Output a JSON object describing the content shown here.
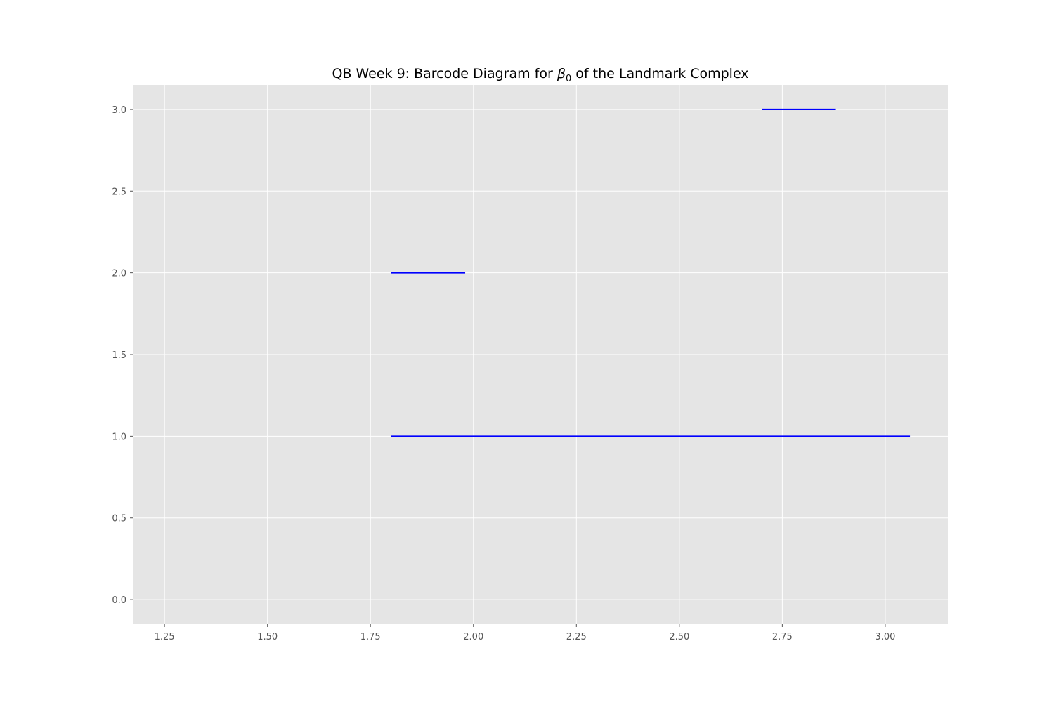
{
  "chart_data": {
    "type": "barcode",
    "title_prefix": "QB Week 9: Barcode Diagram for ",
    "title_symbol": "β",
    "title_subscript": "0",
    "title_suffix": " of the Landmark Complex",
    "xlabel": "",
    "ylabel": "",
    "xlim": [
      1.173,
      3.152
    ],
    "ylim": [
      -0.15,
      3.15
    ],
    "x_ticks": [
      "1.25",
      "1.50",
      "1.75",
      "2.00",
      "2.25",
      "2.50",
      "2.75",
      "3.00"
    ],
    "y_ticks": [
      "0.0",
      "0.5",
      "1.0",
      "1.5",
      "2.0",
      "2.5",
      "3.0"
    ],
    "grid": true,
    "background_color": "#e5e5e5",
    "grid_color": "#ffffff",
    "bar_color": "#0000ff",
    "bars": [
      {
        "birth": 1.8,
        "death": 3.06,
        "y": 1
      },
      {
        "birth": 1.8,
        "death": 1.98,
        "y": 2
      },
      {
        "birth": 2.7,
        "death": 2.88,
        "y": 3
      }
    ]
  }
}
